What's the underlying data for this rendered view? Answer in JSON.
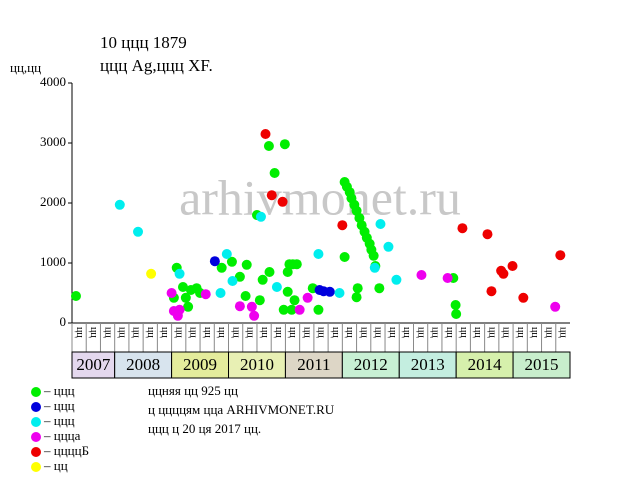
{
  "chart_data": {
    "type": "scatter",
    "title": "10 ццц 1879",
    "subtitle": "ццц Ag,ццц XF.",
    "y_label": "цц,цц",
    "watermark": "arhivmonet.ru",
    "ylim": [
      0,
      4000
    ],
    "yticks": [
      0,
      1000,
      2000,
      3000,
      4000
    ],
    "xlim": [
      2007.25,
      2016
    ],
    "grid": false,
    "column_labels": [
      "цц",
      "цц",
      "цц",
      "цц",
      "цц",
      "цц",
      "цц",
      "цц",
      "цц",
      "цц",
      "цц",
      "цц",
      "цц",
      "цц",
      "цц",
      "цц",
      "цц",
      "цц",
      "цц",
      "цц",
      "цц",
      "цц",
      "цц",
      "цц",
      "цц",
      "цц",
      "цц",
      "цц",
      "цц",
      "цц",
      "цц",
      "цц",
      "цц",
      "цц",
      "цц"
    ],
    "years": [
      "2007",
      "2008",
      "2009",
      "2010",
      "2011",
      "2012",
      "2013",
      "2014",
      "2015"
    ],
    "year_colors": [
      "#e4d8ee",
      "#d8e4ee",
      "#e4ec9c",
      "#e8f0b4",
      "#ddd6c6",
      "#c8f0d4",
      "#c4eee0",
      "#d6f0ac",
      "#c8eecc"
    ],
    "notes": [
      "ццняя цц 925 цц",
      "ц ццццям цца ARHIVMONET.RU",
      "ццц ц 20 ця 2017 цц."
    ],
    "series": [
      {
        "name": "– ццц",
        "color": "#00ee00",
        "x": [
          2007.32,
          2009.09,
          2009.04,
          2009.2,
          2009.25,
          2009.29,
          2009.34,
          2009.44,
          2009.5,
          2009.88,
          2010.06,
          2010.2,
          2010.32,
          2010.3,
          2010.5,
          2010.55,
          2010.6,
          2010.72,
          2010.71,
          2010.81,
          2010.99,
          2011.04,
          2011.07,
          2011.13,
          2011.2,
          2011.04,
          2010.97,
          2011.11,
          2011.16,
          2011.48,
          2011.58,
          2012.04,
          2012.25,
          2012.27,
          2012.04,
          2012.08,
          2012.13,
          2012.16,
          2012.21,
          2012.25,
          2012.3,
          2012.34,
          2012.39,
          2012.43,
          2012.48,
          2012.51,
          2012.55,
          2012.58,
          2012.65,
          2013.95,
          2013.99,
          2014.0
        ],
        "values": [
          450,
          920,
          420,
          600,
          420,
          270,
          550,
          580,
          500,
          920,
          1020,
          770,
          970,
          450,
          1800,
          380,
          720,
          850,
          2950,
          2500,
          2980,
          850,
          980,
          980,
          980,
          520,
          220,
          220,
          380,
          580,
          220,
          1100,
          430,
          580,
          2350,
          2270,
          2180,
          2080,
          1970,
          1870,
          1750,
          1630,
          1520,
          1420,
          1320,
          1220,
          1120,
          950,
          580,
          750,
          300,
          150
        ]
      },
      {
        "name": "– ццц",
        "color": "#0000dd",
        "x": [
          2009.76,
          2011.6,
          2011.67,
          2011.78
        ],
        "values": [
          1030,
          550,
          530,
          520
        ]
      },
      {
        "name": "– ццц",
        "color": "#00eeee",
        "x": [
          2008.09,
          2008.41,
          2009.14,
          2009.86,
          2009.97,
          2010.07,
          2010.57,
          2010.85,
          2011.58,
          2011.95,
          2012.57,
          2012.67,
          2012.81,
          2012.95
        ],
        "values": [
          1970,
          1520,
          820,
          500,
          1150,
          700,
          1770,
          600,
          1150,
          500,
          920,
          1650,
          1270,
          720
        ]
      },
      {
        "name": "– ццца",
        "color": "#ee00ee",
        "x": [
          2009.0,
          2009.04,
          2009.11,
          2009.14,
          2009.6,
          2010.2,
          2010.41,
          2010.45,
          2011.25,
          2011.39,
          2013.39,
          2013.85,
          2015.74
        ],
        "values": [
          500,
          200,
          120,
          220,
          480,
          280,
          270,
          120,
          220,
          420,
          800,
          750,
          270
        ]
      },
      {
        "name": "– ццццБ",
        "color": "#ee0000",
        "x": [
          2010.65,
          2010.76,
          2010.95,
          2012.0,
          2014.11,
          2014.55,
          2014.62,
          2014.79,
          2014.83,
          2014.99,
          2015.18,
          2015.83
        ],
        "values": [
          3150,
          2130,
          2020,
          1630,
          1580,
          1480,
          530,
          870,
          820,
          950,
          420,
          1130
        ]
      },
      {
        "name": "– цц",
        "color": "#ffff00",
        "x": [
          2008.64
        ],
        "values": [
          820
        ]
      }
    ]
  }
}
